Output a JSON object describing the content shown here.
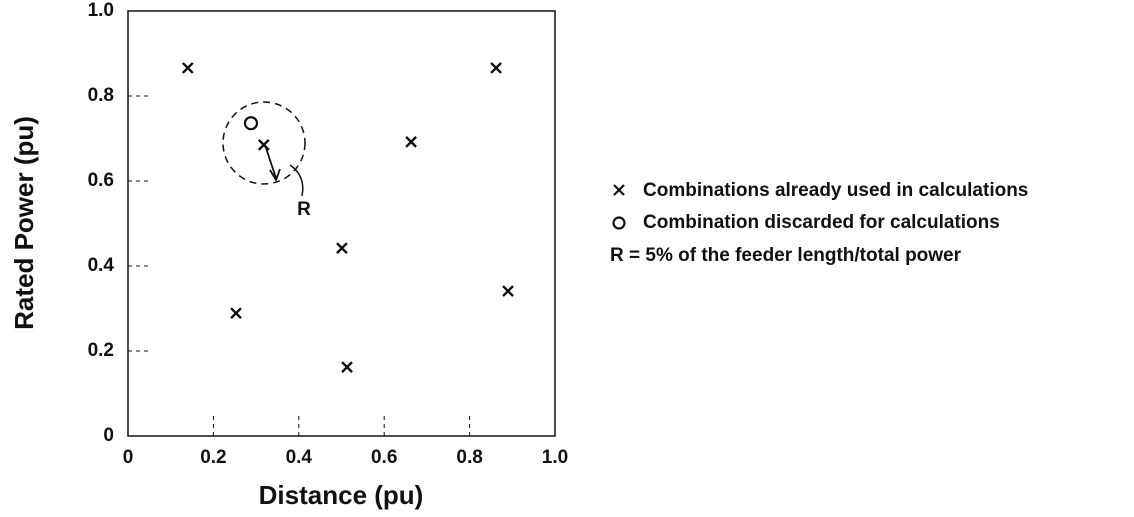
{
  "chart_data": {
    "type": "scatter",
    "xlabel": "Distance (pu)",
    "ylabel": "Rated Power (pu)",
    "xlim": [
      0,
      1
    ],
    "ylim": [
      0,
      1
    ],
    "xticks": [
      0,
      0.2,
      0.4,
      0.6,
      0.8,
      {
        "value": 1,
        "label": "1.0"
      }
    ],
    "yticks": [
      0,
      0.2,
      0.4,
      0.6,
      0.8,
      {
        "value": 1,
        "label": "1.0"
      }
    ],
    "color": "#111111",
    "series": [
      {
        "name": "Combinations already used in calculations",
        "marker": "x",
        "x": [
          0.14,
          0.318,
          0.663,
          0.862,
          0.501,
          0.253,
          0.513,
          0.89
        ],
        "values": [
          0.866,
          0.685,
          0.692,
          0.866,
          0.442,
          0.289,
          0.162,
          0.341
        ]
      },
      {
        "name": "Combination discarded for calculations",
        "marker": "o",
        "x": [
          0.288
        ],
        "values": [
          0.736
        ]
      }
    ],
    "annotations": [
      "R",
      "R = 5% of the feeder length/total power"
    ]
  }
}
